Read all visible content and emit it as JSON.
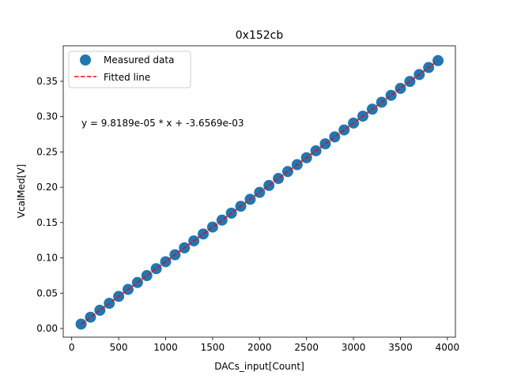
{
  "chart_data": {
    "type": "scatter",
    "title": "0x152cb",
    "xlabel": "DACs_input[Count]",
    "ylabel": "VcalMed[V]",
    "xlim": [
      -90,
      4085
    ],
    "ylim": [
      -0.0123,
      0.4003
    ],
    "xticks": [
      0,
      500,
      1000,
      1500,
      2000,
      2500,
      3000,
      3500,
      4000
    ],
    "xtick_labels": [
      "0",
      "500",
      "1000",
      "1500",
      "2000",
      "2500",
      "3000",
      "3500",
      "4000"
    ],
    "yticks": [
      0,
      0.05,
      0.1,
      0.15,
      0.2,
      0.25,
      0.3,
      0.35
    ],
    "ytick_labels": [
      "0.00",
      "0.05",
      "0.10",
      "0.15",
      "0.20",
      "0.25",
      "0.30",
      "0.35"
    ],
    "legend_placement": "upper-left",
    "annotation": "y = 9.8189e-05 * x + -3.6569e-03",
    "fit": {
      "slope": 9.8189e-05,
      "intercept": -0.0036569,
      "x_range": [
        100,
        3900
      ]
    },
    "series": [
      {
        "name": "Measured data",
        "color": "#1f77b4",
        "style": "markers",
        "x": [
          100,
          200,
          300,
          400,
          500,
          600,
          700,
          800,
          900,
          1000,
          1100,
          1200,
          1300,
          1400,
          1500,
          1600,
          1700,
          1800,
          1900,
          2000,
          2100,
          2200,
          2300,
          2400,
          2500,
          2600,
          2700,
          2800,
          2900,
          3000,
          3100,
          3200,
          3300,
          3400,
          3500,
          3600,
          3700,
          3800,
          3900
        ],
        "y": [
          0.0062,
          0.016,
          0.0258,
          0.0356,
          0.0454,
          0.0553,
          0.0651,
          0.0749,
          0.0847,
          0.0945,
          0.1044,
          0.1142,
          0.124,
          0.1338,
          0.1436,
          0.1534,
          0.1633,
          0.1731,
          0.1829,
          0.1927,
          0.2025,
          0.2124,
          0.2222,
          0.232,
          0.2418,
          0.2516,
          0.2615,
          0.2713,
          0.2811,
          0.2909,
          0.3007,
          0.3105,
          0.3204,
          0.3302,
          0.34,
          0.3498,
          0.3596,
          0.3695,
          0.3793
        ]
      },
      {
        "name": "Fitted line",
        "color": "#ff0000",
        "style": "dashed-line"
      }
    ]
  }
}
